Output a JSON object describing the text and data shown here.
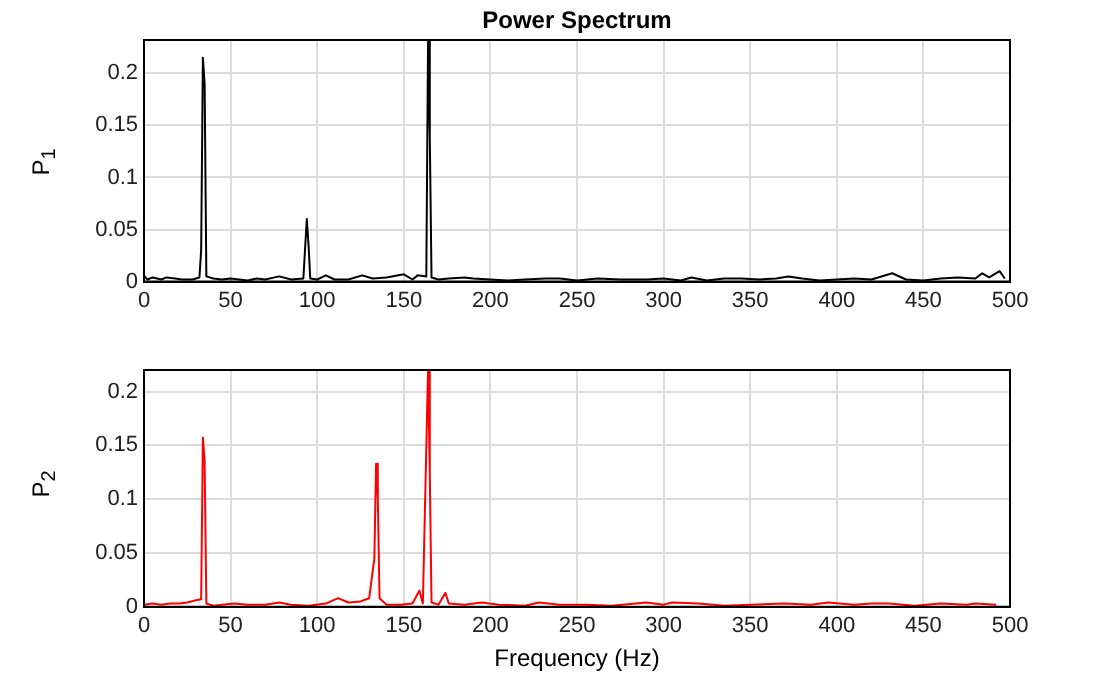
{
  "chart_data": [
    {
      "type": "line",
      "title": "Power Spectrum",
      "ylabel": "P$_{1}$",
      "xlim": [
        0,
        500
      ],
      "xticks": [
        0,
        50,
        100,
        150,
        200,
        250,
        300,
        350,
        400,
        450,
        500
      ],
      "ylim": [
        0,
        0.232
      ],
      "yticks": [
        0,
        0.05,
        0.1,
        0.15,
        0.2
      ],
      "grid": true,
      "legend": false,
      "marker": "none",
      "series": [
        {
          "color": "#000000",
          "x": [
            0,
            2,
            5,
            10,
            13,
            18,
            22,
            28,
            32,
            33,
            34,
            35,
            36,
            40,
            45,
            50,
            55,
            60,
            65,
            70,
            78,
            85,
            92,
            94,
            95,
            96,
            100,
            105,
            110,
            118,
            126,
            132,
            140,
            150,
            155,
            158,
            163,
            164,
            165,
            166,
            170,
            176,
            185,
            190,
            200,
            210,
            220,
            232,
            240,
            250,
            262,
            275,
            290,
            300,
            310,
            316,
            325,
            335,
            345,
            355,
            365,
            372,
            380,
            390,
            400,
            410,
            420,
            432,
            440,
            450,
            460,
            470,
            480,
            484,
            488,
            494,
            497
          ],
          "values": [
            0.006,
            0.002,
            0.004,
            0.002,
            0.004,
            0.003,
            0.002,
            0.002,
            0.004,
            0.03,
            0.215,
            0.19,
            0.005,
            0.003,
            0.002,
            0.003,
            0.002,
            0.001,
            0.003,
            0.002,
            0.005,
            0.002,
            0.003,
            0.06,
            0.035,
            0.003,
            0.002,
            0.006,
            0.002,
            0.002,
            0.006,
            0.003,
            0.004,
            0.007,
            0.002,
            0.006,
            0.005,
            0.232,
            0.14,
            0.004,
            0.002,
            0.003,
            0.004,
            0.003,
            0.002,
            0.001,
            0.002,
            0.003,
            0.003,
            0.001,
            0.003,
            0.002,
            0.002,
            0.003,
            0.001,
            0.004,
            0.001,
            0.003,
            0.003,
            0.002,
            0.003,
            0.005,
            0.003,
            0.001,
            0.002,
            0.003,
            0.002,
            0.008,
            0.002,
            0.001,
            0.003,
            0.004,
            0.003,
            0.008,
            0.004,
            0.01,
            0.003
          ]
        }
      ]
    },
    {
      "type": "line",
      "xlabel": "Frequency (Hz)",
      "ylabel": "P$_{2}$",
      "xlim": [
        0,
        500
      ],
      "xticks": [
        0,
        50,
        100,
        150,
        200,
        250,
        300,
        350,
        400,
        450,
        500
      ],
      "ylim": [
        0,
        0.22
      ],
      "yticks": [
        0,
        0.05,
        0.1,
        0.15,
        0.2
      ],
      "grid": true,
      "legend": false,
      "marker": "none",
      "series": [
        {
          "color": "#ff0000",
          "x": [
            0,
            5,
            10,
            15,
            20,
            25,
            30,
            33,
            34,
            35,
            36,
            40,
            45,
            52,
            60,
            70,
            78,
            85,
            95,
            105,
            112,
            118,
            125,
            130,
            133,
            134,
            135,
            136,
            140,
            148,
            155,
            159,
            161,
            164,
            165,
            166,
            170,
            174,
            176,
            185,
            195,
            205,
            220,
            228,
            240,
            255,
            270,
            290,
            300,
            305,
            320,
            335,
            350,
            370,
            385,
            395,
            410,
            420,
            430,
            445,
            460,
            475,
            480,
            492
          ],
          "values": [
            0.002,
            0.003,
            0.002,
            0.003,
            0.003,
            0.004,
            0.006,
            0.007,
            0.157,
            0.135,
            0.003,
            0.001,
            0.002,
            0.003,
            0.002,
            0.002,
            0.004,
            0.002,
            0.001,
            0.003,
            0.008,
            0.004,
            0.005,
            0.008,
            0.045,
            0.133,
            0.1,
            0.008,
            0.002,
            0.002,
            0.003,
            0.015,
            0.003,
            0.22,
            0.125,
            0.004,
            0.002,
            0.013,
            0.003,
            0.002,
            0.004,
            0.002,
            0.001,
            0.004,
            0.002,
            0.002,
            0.001,
            0.004,
            0.002,
            0.004,
            0.003,
            0.001,
            0.002,
            0.003,
            0.002,
            0.004,
            0.002,
            0.003,
            0.003,
            0.001,
            0.003,
            0.002,
            0.003,
            0.002
          ]
        }
      ]
    }
  ]
}
